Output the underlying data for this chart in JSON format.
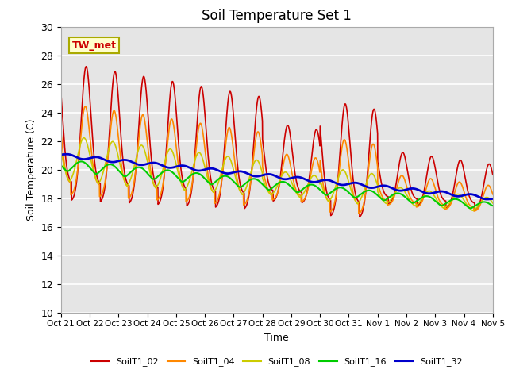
{
  "title": "Soil Temperature Set 1",
  "xlabel": "Time",
  "ylabel": "Soil Temperature (C)",
  "ylim": [
    10,
    30
  ],
  "xlim": [
    0,
    15
  ],
  "bg_color": "#e5e5e5",
  "annotation_text": "TW_met",
  "annotation_bg": "#ffffcc",
  "annotation_border": "#aaaa00",
  "series_colors": [
    "#cc0000",
    "#ff8800",
    "#cccc00",
    "#00cc00",
    "#0000cc"
  ],
  "series_names": [
    "SoilT1_02",
    "SoilT1_04",
    "SoilT1_08",
    "SoilT1_16",
    "SoilT1_32"
  ],
  "series_lw": [
    1.2,
    1.2,
    1.2,
    1.5,
    2.0
  ],
  "xtick_labels": [
    "Oct 21",
    "Oct 22",
    "Oct 23",
    "Oct 24",
    "Oct 25",
    "Oct 26",
    "Oct 27",
    "Oct 28",
    "Oct 29",
    "Oct 30",
    "Oct 31",
    "Nov 1",
    "Nov 2",
    "Nov 3",
    "Nov 4",
    "Nov 5"
  ],
  "yticks": [
    10,
    12,
    14,
    16,
    18,
    20,
    22,
    24,
    26,
    28,
    30
  ]
}
